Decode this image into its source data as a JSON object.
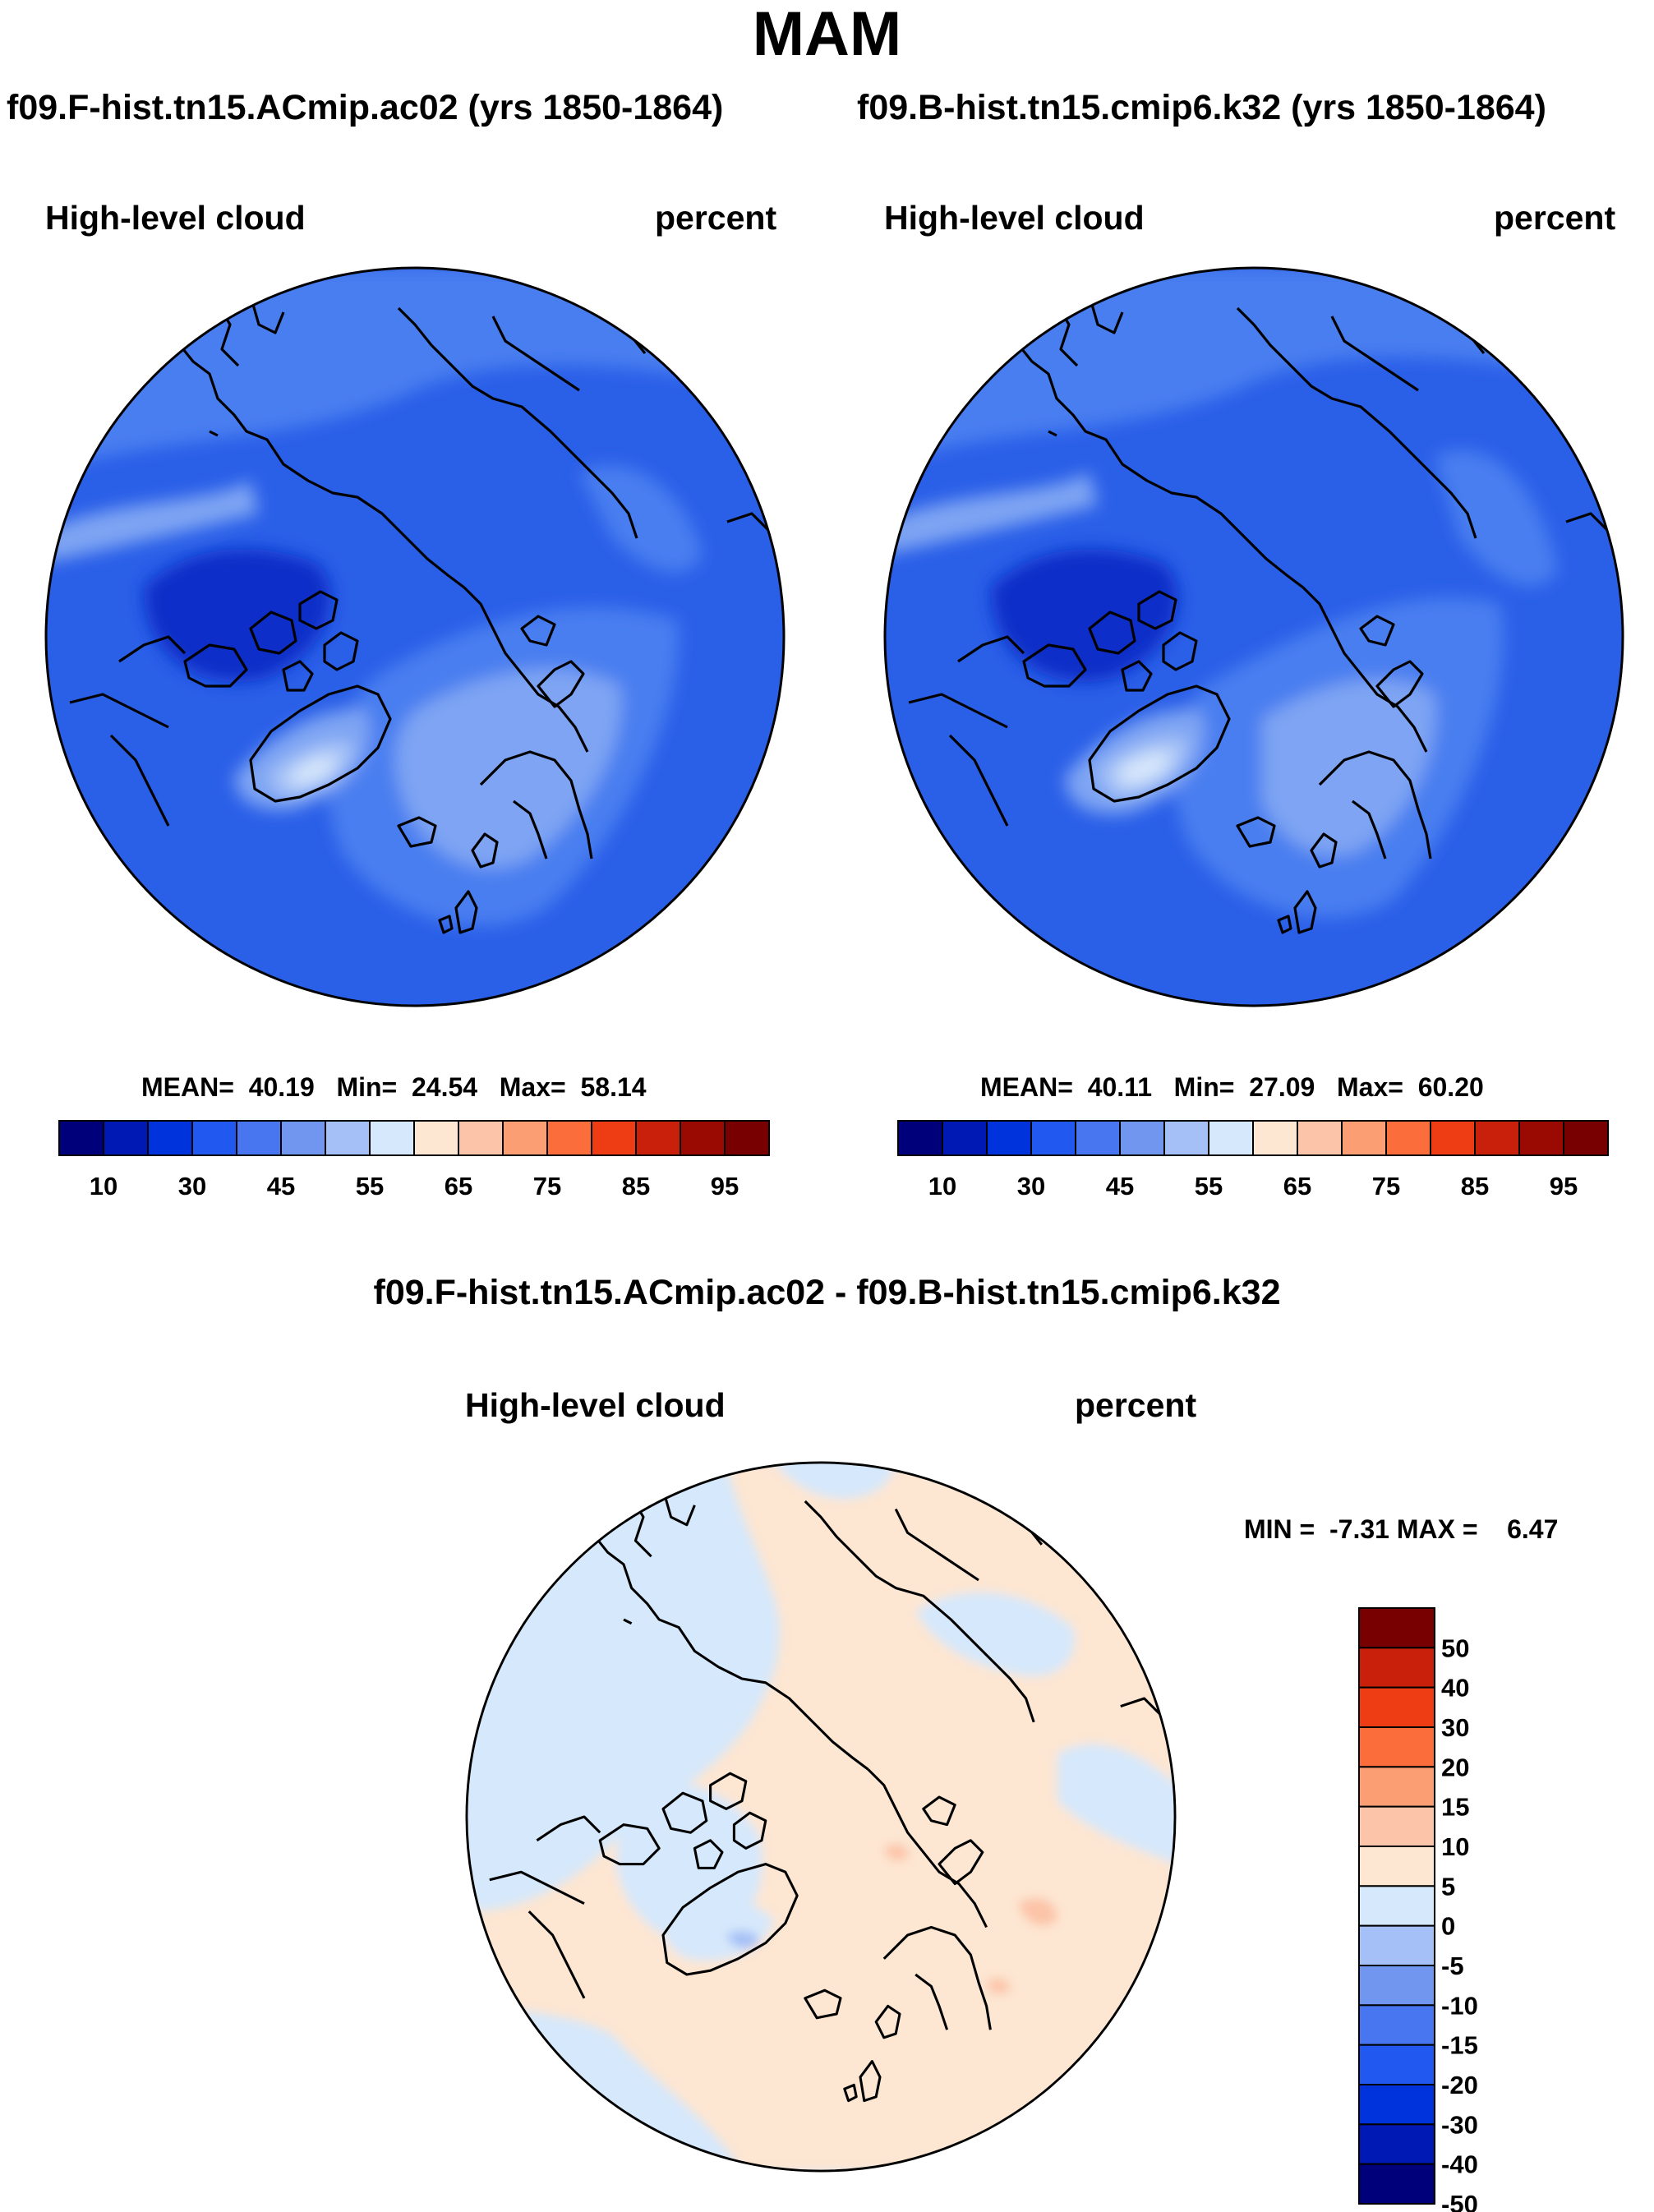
{
  "figure": {
    "title": "MAM"
  },
  "panels": [
    {
      "case_title": "f09.F-hist.tn15.ACmip.ac02 (yrs 1850-1864)",
      "variable": "High-level cloud",
      "units": "percent",
      "mean_label": "MEAN=",
      "mean": "40.19",
      "min_label": "Min=",
      "min": "24.54",
      "max_label": "Max=",
      "max": "58.14"
    },
    {
      "case_title": "f09.B-hist.tn15.cmip6.k32 (yrs 1850-1864)",
      "variable": "High-level cloud",
      "units": "percent",
      "mean_label": "MEAN=",
      "mean": "40.11",
      "min_label": "Min=",
      "min": "27.09",
      "max_label": "Max=",
      "max": "60.20"
    }
  ],
  "difference": {
    "title": "f09.F-hist.tn15.ACmip.ac02 - f09.B-hist.tn15.cmip6.k32",
    "variable": "High-level cloud",
    "units": "percent",
    "minmax_text": "MIN =  -7.31 MAX =    6.47"
  },
  "colorbars": {
    "absolute": {
      "colors": [
        "#00007a",
        "#0019b4",
        "#0033dc",
        "#2058f0",
        "#4876f0",
        "#7096f0",
        "#a4c0f6",
        "#d6e8fb",
        "#fde6d2",
        "#fcc4a8",
        "#fb9e74",
        "#fb6e3c",
        "#ee3c14",
        "#c8200a",
        "#9a0a02",
        "#780000"
      ],
      "tick_labels": [
        "10",
        "30",
        "45",
        "55",
        "65",
        "75",
        "85",
        "95"
      ]
    },
    "difference": {
      "colors": [
        "#780000",
        "#c8200a",
        "#ee3c14",
        "#fb6e3c",
        "#fb9e74",
        "#fcc4a8",
        "#fde6d2",
        "#d6e8fb",
        "#a4c0f6",
        "#7096f0",
        "#4876f0",
        "#2058f0",
        "#0033dc",
        "#0019b4",
        "#00007a"
      ],
      "tick_labels": [
        "50",
        "40",
        "30",
        "20",
        "15",
        "10",
        "5",
        "0",
        "-5",
        "-10",
        "-15",
        "-20",
        "-30",
        "-40",
        "-50"
      ]
    }
  },
  "map_colors": {
    "abs_deep": "#0f2fc8",
    "abs_base": "#2a5fe8",
    "abs_mid": "#4a7ef0",
    "abs_light": "#7ea4f3",
    "abs_lighter": "#a8c4f7",
    "abs_pale": "#d8e8fb",
    "diff_blue": "#d6e8fb",
    "diff_orange": "#fde6d2",
    "diff_deeper_blue": "#a4c0f6",
    "diff_deeper_orange": "#fcc4a8",
    "coast": "#000000"
  }
}
